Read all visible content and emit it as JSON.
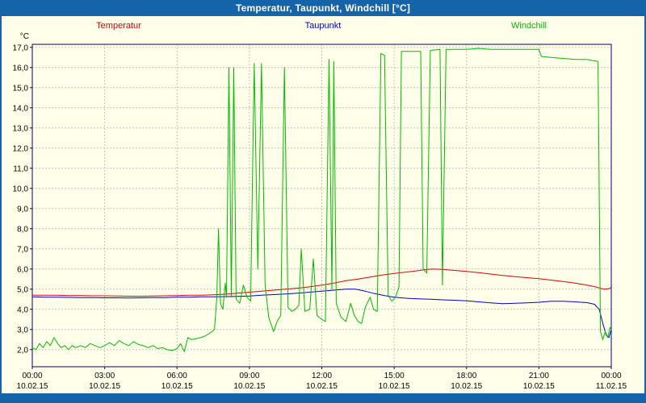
{
  "window": {
    "title": "Temperatur, Taupunkt, Windchill [°C]"
  },
  "colors": {
    "accent": "#1563a8",
    "background": "#ffffea",
    "grid": "#c0c0c0",
    "frame": "#000066",
    "text": "#000000"
  },
  "legend": [
    {
      "label": "Temperatur",
      "color": "#dd0000"
    },
    {
      "label": "Taupunkt",
      "color": "#0000cc"
    },
    {
      "label": "Windchill",
      "color": "#00bb00"
    }
  ],
  "chart_data": {
    "type": "line",
    "title": "Temperatur, Taupunkt, Windchill [°C]",
    "ylabel": "°C",
    "xlabel": "",
    "grid": "dashed",
    "legend_position": "top",
    "ylim": [
      1.15,
      17.15
    ],
    "xlim": [
      0,
      24
    ],
    "yticks": [
      {
        "v": 17,
        "label": "17,0"
      },
      {
        "v": 16,
        "label": "16,0"
      },
      {
        "v": 15,
        "label": "15,0"
      },
      {
        "v": 14,
        "label": "14,0"
      },
      {
        "v": 13,
        "label": "13,0"
      },
      {
        "v": 12,
        "label": "12,0"
      },
      {
        "v": 11,
        "label": "11,0"
      },
      {
        "v": 10,
        "label": "10,0"
      },
      {
        "v": 9,
        "label": "9,0"
      },
      {
        "v": 8,
        "label": "8,0"
      },
      {
        "v": 7,
        "label": "7,0"
      },
      {
        "v": 6,
        "label": "6,0"
      },
      {
        "v": 5,
        "label": "5,0"
      },
      {
        "v": 4,
        "label": "4,0"
      },
      {
        "v": 3,
        "label": "3,0"
      },
      {
        "v": 2,
        "label": "2,0"
      }
    ],
    "xticks": [
      {
        "h": 0,
        "time": "00:00",
        "date": "10.02.15"
      },
      {
        "h": 3,
        "time": "03:00",
        "date": "10.02.15"
      },
      {
        "h": 6,
        "time": "06:00",
        "date": "10.02.15"
      },
      {
        "h": 9,
        "time": "09:00",
        "date": "10.02.15"
      },
      {
        "h": 12,
        "time": "12:00",
        "date": "10.02.15"
      },
      {
        "h": 15,
        "time": "15:00",
        "date": "10.02.15"
      },
      {
        "h": 18,
        "time": "18:00",
        "date": "10.02.15"
      },
      {
        "h": 21,
        "time": "21:00",
        "date": "10.02.15"
      },
      {
        "h": 24,
        "time": "00:00",
        "date": "11.02.15"
      }
    ],
    "series": [
      {
        "name": "Temperatur",
        "color": "#dd0000",
        "points": [
          [
            0,
            4.7
          ],
          [
            0.5,
            4.7
          ],
          [
            1,
            4.7
          ],
          [
            1.5,
            4.68
          ],
          [
            2,
            4.68
          ],
          [
            2.5,
            4.67
          ],
          [
            3,
            4.67
          ],
          [
            3.5,
            4.66
          ],
          [
            4,
            4.65
          ],
          [
            4.5,
            4.65
          ],
          [
            5,
            4.66
          ],
          [
            5.5,
            4.67
          ],
          [
            6,
            4.68
          ],
          [
            6.5,
            4.7
          ],
          [
            7,
            4.7
          ],
          [
            7.5,
            4.72
          ],
          [
            8,
            4.75
          ],
          [
            8.5,
            4.8
          ],
          [
            9,
            4.85
          ],
          [
            9.5,
            4.9
          ],
          [
            10,
            4.95
          ],
          [
            10.5,
            5.0
          ],
          [
            11,
            5.05
          ],
          [
            11.5,
            5.12
          ],
          [
            12,
            5.2
          ],
          [
            12.5,
            5.3
          ],
          [
            13,
            5.42
          ],
          [
            13.5,
            5.5
          ],
          [
            14,
            5.6
          ],
          [
            14.5,
            5.7
          ],
          [
            15,
            5.78
          ],
          [
            15.5,
            5.85
          ],
          [
            16,
            5.92
          ],
          [
            16.3,
            5.97
          ],
          [
            16.6,
            6.0
          ],
          [
            17,
            5.98
          ],
          [
            17.5,
            5.93
          ],
          [
            18,
            5.88
          ],
          [
            18.5,
            5.82
          ],
          [
            19,
            5.75
          ],
          [
            19.5,
            5.68
          ],
          [
            20,
            5.62
          ],
          [
            20.5,
            5.57
          ],
          [
            21,
            5.52
          ],
          [
            21.5,
            5.45
          ],
          [
            22,
            5.38
          ],
          [
            22.5,
            5.3
          ],
          [
            23,
            5.2
          ],
          [
            23.4,
            5.1
          ],
          [
            23.7,
            5.0
          ],
          [
            23.9,
            5.02
          ],
          [
            24,
            5.1
          ]
        ]
      },
      {
        "name": "Taupunkt",
        "color": "#0000cc",
        "points": [
          [
            0,
            4.62
          ],
          [
            0.5,
            4.6
          ],
          [
            1,
            4.6
          ],
          [
            1.5,
            4.59
          ],
          [
            2,
            4.58
          ],
          [
            2.5,
            4.58
          ],
          [
            3,
            4.57
          ],
          [
            3.5,
            4.57
          ],
          [
            4,
            4.56
          ],
          [
            4.5,
            4.57
          ],
          [
            5,
            4.58
          ],
          [
            5.5,
            4.58
          ],
          [
            6,
            4.6
          ],
          [
            6.5,
            4.6
          ],
          [
            7,
            4.62
          ],
          [
            7.5,
            4.62
          ],
          [
            8,
            4.63
          ],
          [
            8.5,
            4.64
          ],
          [
            9,
            4.66
          ],
          [
            9.5,
            4.7
          ],
          [
            10,
            4.73
          ],
          [
            10.5,
            4.76
          ],
          [
            11,
            4.8
          ],
          [
            11.5,
            4.85
          ],
          [
            12,
            4.9
          ],
          [
            12.5,
            4.95
          ],
          [
            13,
            5.0
          ],
          [
            13.4,
            5.0
          ],
          [
            13.8,
            4.9
          ],
          [
            14.2,
            4.78
          ],
          [
            14.6,
            4.68
          ],
          [
            15,
            4.6
          ],
          [
            15.5,
            4.55
          ],
          [
            16,
            4.52
          ],
          [
            16.5,
            4.5
          ],
          [
            17,
            4.47
          ],
          [
            17.5,
            4.45
          ],
          [
            18,
            4.42
          ],
          [
            18.5,
            4.37
          ],
          [
            19,
            4.32
          ],
          [
            19.5,
            4.28
          ],
          [
            20,
            4.3
          ],
          [
            20.5,
            4.32
          ],
          [
            21,
            4.35
          ],
          [
            21.5,
            4.4
          ],
          [
            22,
            4.4
          ],
          [
            22.5,
            4.37
          ],
          [
            23,
            4.33
          ],
          [
            23.3,
            4.25
          ],
          [
            23.5,
            4.0
          ],
          [
            23.65,
            3.3
          ],
          [
            23.8,
            2.7
          ],
          [
            23.9,
            2.6
          ],
          [
            24,
            3.0
          ]
        ]
      },
      {
        "name": "Windchill",
        "color": "#00bb00",
        "points": [
          [
            0,
            2.1
          ],
          [
            0.15,
            2.0
          ],
          [
            0.3,
            2.3
          ],
          [
            0.45,
            2.1
          ],
          [
            0.6,
            2.4
          ],
          [
            0.75,
            2.2
          ],
          [
            0.9,
            2.6
          ],
          [
            1.05,
            2.3
          ],
          [
            1.2,
            2.1
          ],
          [
            1.35,
            2.2
          ],
          [
            1.5,
            2.0
          ],
          [
            1.65,
            2.2
          ],
          [
            1.8,
            2.1
          ],
          [
            2,
            2.2
          ],
          [
            2.2,
            2.1
          ],
          [
            2.4,
            2.3
          ],
          [
            2.6,
            2.2
          ],
          [
            2.8,
            2.1
          ],
          [
            3,
            2.2
          ],
          [
            3.2,
            2.35
          ],
          [
            3.4,
            2.2
          ],
          [
            3.6,
            2.45
          ],
          [
            3.8,
            2.3
          ],
          [
            4,
            2.2
          ],
          [
            4.2,
            2.4
          ],
          [
            4.4,
            2.25
          ],
          [
            4.6,
            2.2
          ],
          [
            4.8,
            2.1
          ],
          [
            5,
            2.2
          ],
          [
            5.2,
            2.05
          ],
          [
            5.4,
            2.1
          ],
          [
            5.6,
            2.0
          ],
          [
            5.8,
            1.95
          ],
          [
            6,
            2.05
          ],
          [
            6.15,
            2.3
          ],
          [
            6.3,
            1.9
          ],
          [
            6.45,
            2.6
          ],
          [
            6.6,
            2.5
          ],
          [
            6.8,
            2.55
          ],
          [
            7,
            2.6
          ],
          [
            7.2,
            2.7
          ],
          [
            7.4,
            2.85
          ],
          [
            7.55,
            3.0
          ],
          [
            7.65,
            4.6
          ],
          [
            7.72,
            8.0
          ],
          [
            7.8,
            4.3
          ],
          [
            7.9,
            4.0
          ],
          [
            8,
            5.3
          ],
          [
            8.05,
            4.6
          ],
          [
            8.15,
            16.0
          ],
          [
            8.25,
            4.6
          ],
          [
            8.35,
            16.0
          ],
          [
            8.45,
            4.5
          ],
          [
            8.6,
            4.3
          ],
          [
            8.75,
            5.2
          ],
          [
            8.9,
            4.6
          ],
          [
            9.05,
            4.4
          ],
          [
            9.2,
            16.2
          ],
          [
            9.35,
            6.0
          ],
          [
            9.5,
            16.2
          ],
          [
            9.65,
            5.2
          ],
          [
            9.8,
            3.6
          ],
          [
            10,
            2.9
          ],
          [
            10.15,
            3.4
          ],
          [
            10.3,
            3.7
          ],
          [
            10.45,
            16.0
          ],
          [
            10.6,
            4.1
          ],
          [
            10.75,
            3.9
          ],
          [
            10.9,
            4.0
          ],
          [
            11.05,
            4.2
          ],
          [
            11.15,
            7.0
          ],
          [
            11.3,
            3.9
          ],
          [
            11.5,
            4.0
          ],
          [
            11.65,
            6.5
          ],
          [
            11.8,
            3.7
          ],
          [
            12,
            3.5
          ],
          [
            12.15,
            3.4
          ],
          [
            12.3,
            16.4
          ],
          [
            12.42,
            5.0
          ],
          [
            12.5,
            16.3
          ],
          [
            12.6,
            4.3
          ],
          [
            12.8,
            3.6
          ],
          [
            13,
            3.4
          ],
          [
            13.2,
            4.3
          ],
          [
            13.35,
            3.7
          ],
          [
            13.5,
            3.4
          ],
          [
            13.65,
            3.3
          ],
          [
            13.8,
            4.1
          ],
          [
            14,
            4.6
          ],
          [
            14.15,
            4.0
          ],
          [
            14.3,
            3.9
          ],
          [
            14.45,
            16.7
          ],
          [
            14.6,
            16.6
          ],
          [
            14.75,
            4.7
          ],
          [
            14.9,
            4.4
          ],
          [
            15.05,
            4.6
          ],
          [
            15.2,
            5.1
          ],
          [
            15.3,
            16.8
          ],
          [
            15.7,
            16.8
          ],
          [
            16.1,
            16.8
          ],
          [
            16.2,
            6.0
          ],
          [
            16.35,
            5.8
          ],
          [
            16.5,
            16.85
          ],
          [
            16.9,
            16.9
          ],
          [
            17.0,
            5.2
          ],
          [
            17.15,
            16.9
          ],
          [
            17.5,
            16.9
          ],
          [
            18,
            16.9
          ],
          [
            18.5,
            16.95
          ],
          [
            19,
            16.9
          ],
          [
            19.5,
            16.9
          ],
          [
            20,
            16.9
          ],
          [
            20.5,
            16.9
          ],
          [
            21,
            16.9
          ],
          [
            21.1,
            16.55
          ],
          [
            21.5,
            16.5
          ],
          [
            22,
            16.45
          ],
          [
            22.5,
            16.4
          ],
          [
            23,
            16.4
          ],
          [
            23.2,
            16.35
          ],
          [
            23.45,
            16.3
          ],
          [
            23.55,
            2.9
          ],
          [
            23.65,
            2.5
          ],
          [
            23.75,
            2.9
          ],
          [
            23.85,
            2.6
          ],
          [
            23.95,
            3.1
          ],
          [
            24,
            3.0
          ]
        ]
      }
    ]
  }
}
